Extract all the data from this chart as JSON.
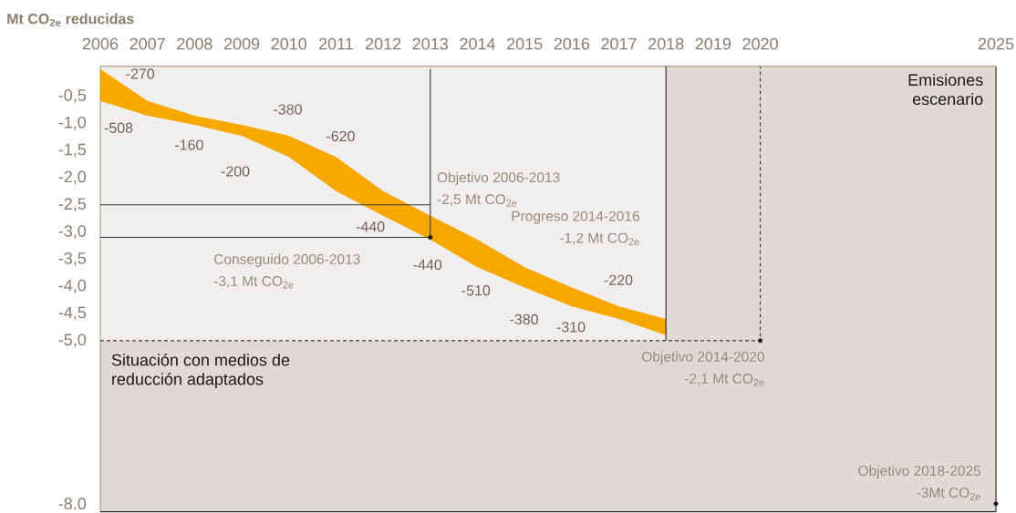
{
  "chart_data": {
    "type": "area",
    "ylabel": "Mt CO$_{2e}$ reducidas",
    "xlim": [
      2006,
      2025
    ],
    "ylim": [
      -8.15,
      0.05
    ],
    "xticks": [
      2006,
      2007,
      2008,
      2009,
      2010,
      2011,
      2012,
      2013,
      2014,
      2015,
      2016,
      2017,
      2018,
      2019,
      2020,
      2025
    ],
    "yticks": [
      {
        "value": -0.5,
        "label": "-0,5"
      },
      {
        "value": -1.0,
        "label": "-1,0"
      },
      {
        "value": -1.5,
        "label": "-1,5"
      },
      {
        "value": -2.0,
        "label": "-2,0"
      },
      {
        "value": -2.5,
        "label": "-2,5"
      },
      {
        "value": -3.0,
        "label": "-3,0"
      },
      {
        "value": -3.5,
        "label": "-3,5"
      },
      {
        "value": -4.0,
        "label": "-4,0"
      },
      {
        "value": -4.5,
        "label": "-4,5"
      },
      {
        "value": -5.0,
        "label": "-5,0"
      },
      {
        "value": -8.0,
        "label": "-8.0"
      }
    ],
    "series": [
      {
        "color": "#f6a800",
        "x": [
          2006,
          2007,
          2008,
          2009,
          2010,
          2011,
          2012,
          2013,
          2014,
          2015,
          2016,
          2017,
          2018
        ],
        "values": [
          null,
          null,
          null,
          null,
          null,
          null,
          null,
          null,
          null,
          null,
          null,
          null,
          null
        ],
        "upper": [
          0.0,
          -0.59,
          -0.86,
          -1.03,
          -1.23,
          -1.62,
          -2.25,
          -2.7,
          -3.14,
          -3.65,
          -4.02,
          -4.37,
          -4.6
        ],
        "lower": [
          -0.59,
          -0.86,
          -1.03,
          -1.23,
          -1.62,
          -2.25,
          -2.7,
          -3.14,
          -3.65,
          -4.02,
          -4.37,
          -4.6,
          -4.9
        ]
      },
      {
        "type": "line",
        "color": "#3a3a3a",
        "line_style": "solid",
        "x": [
          2006,
          2013
        ],
        "values": [
          -2.5,
          -2.5
        ]
      },
      {
        "type": "line",
        "color": "#3a3a3a",
        "line_style": "solid",
        "x": [
          2006,
          2013,
          2013
        ],
        "values": [
          -3.1,
          -3.1,
          0.0
        ]
      },
      {
        "type": "line",
        "color": "#3a3a3a",
        "line_style": "dashed",
        "x": [
          2006,
          2020,
          2020
        ],
        "values": [
          -5.0,
          -5.0,
          0.05
        ]
      },
      {
        "type": "scatter",
        "color": "#1a1a1a",
        "marker": "circle",
        "x": [
          2013,
          2020,
          2025
        ],
        "values": [
          -3.1,
          -5.0,
          -8.0
        ]
      }
    ],
    "bands": [
      {
        "axis": "x",
        "from": 2018,
        "to": 2025,
        "color": "#dfdad6",
        "label": "Emisiones escenario"
      },
      {
        "axis": "y",
        "from": -8.15,
        "to": -5.0,
        "color": "#dfdad6",
        "label": "Situación con medios de reducción adaptados"
      }
    ],
    "annotations": [
      "-270",
      "-508",
      "-160",
      "-200",
      "-380",
      "-620",
      "-440",
      "-440",
      "-510",
      "-380",
      "-310",
      "-220",
      "Objetivo 2006-2013 -2,5 Mt CO$_{2e}$",
      "Conseguido 2006-2013 -3,1 Mt CO$_{2e}$",
      "Progreso 2014-2016 -1,2 Mt CO$_{2e}$",
      {
        "text": "Objetivo 2014-2020 -2,1 Mt CO$_{2e}$",
        "x": 2020,
        "y": -5.0
      },
      "Objetivo 2018-2025 -3Mt CO$_{2e}$"
    ]
  }
}
